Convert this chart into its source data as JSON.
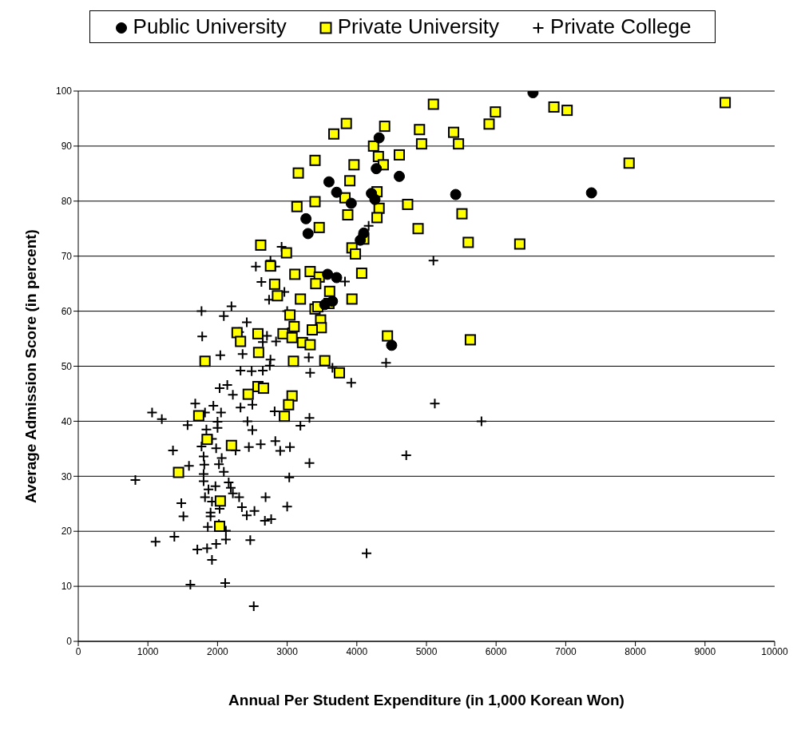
{
  "chart_data": {
    "type": "scatter",
    "xlabel": "Annual Per Student Expenditure (in 1,000 Korean Won)",
    "ylabel": "Average Admission Score (in percent)",
    "xlim": [
      0,
      10000
    ],
    "xticks": [
      0,
      1000,
      2000,
      3000,
      4000,
      5000,
      6000,
      7000,
      8000,
      9000,
      10000
    ],
    "ylim": [
      0,
      100
    ],
    "yticks": [
      0,
      10,
      20,
      30,
      40,
      50,
      60,
      70,
      80,
      90,
      100
    ],
    "grid": "y",
    "legend": "top",
    "series": [
      {
        "name": "Public University",
        "color": "#000000",
        "marker": "circle",
        "x": [
          6530,
          4320,
          4280,
          4610,
          3600,
          3710,
          3920,
          4210,
          4260,
          5420,
          7370,
          4100,
          4050,
          3580,
          3710,
          3650,
          3540,
          4500,
          3270,
          3300
        ],
        "values": [
          99.7,
          91.5,
          85.9,
          84.5,
          83.5,
          81.6,
          79.6,
          81.4,
          80.3,
          81.2,
          81.5,
          74.2,
          72.9,
          66.7,
          66.1,
          61.8,
          61.2,
          53.8,
          76.8,
          74.1
        ]
      },
      {
        "name": "Private University",
        "color": "#ffff00",
        "marker": "square",
        "x": [
          5100,
          3850,
          3670,
          4400,
          4900,
          5390,
          5990,
          5900,
          6830,
          7020,
          9290,
          4240,
          4930,
          5460,
          4310,
          4610,
          3960,
          4380,
          7910,
          3900,
          4290,
          3830,
          4320,
          3870,
          4290,
          4730,
          5510,
          4880,
          4100,
          3930,
          3980,
          5600,
          6340,
          4070,
          3610,
          3930,
          3600,
          4440,
          5630,
          3480,
          3490,
          3540,
          3750,
          3400,
          3160,
          3400,
          3140,
          3460,
          2620,
          2990,
          2760,
          3110,
          3330,
          3460,
          3410,
          2820,
          2860,
          3190,
          3400,
          3440,
          3040,
          3100,
          3360,
          2280,
          2580,
          2940,
          2330,
          3070,
          3220,
          3330,
          2590,
          1820,
          3090,
          2580,
          2660,
          2440,
          3070,
          3020,
          2960,
          1730,
          1850,
          2200,
          1440,
          2040,
          2030
        ],
        "values": [
          97.6,
          94.1,
          92.2,
          93.6,
          93.0,
          92.5,
          96.2,
          94.0,
          97.1,
          96.5,
          97.9,
          90.0,
          90.4,
          90.4,
          88.1,
          88.4,
          86.6,
          86.6,
          86.9,
          83.7,
          81.7,
          80.6,
          78.7,
          77.5,
          77.0,
          79.4,
          77.7,
          75.0,
          73.1,
          71.5,
          70.4,
          72.5,
          72.2,
          66.9,
          63.6,
          62.2,
          61.4,
          55.5,
          54.8,
          58.4,
          57.0,
          51.0,
          48.8,
          87.4,
          85.1,
          79.9,
          79.0,
          75.2,
          72.0,
          70.6,
          68.2,
          66.7,
          67.2,
          66.2,
          65.0,
          64.9,
          62.8,
          62.2,
          60.4,
          60.8,
          59.3,
          57.2,
          56.6,
          56.1,
          55.9,
          55.9,
          54.5,
          55.2,
          54.3,
          53.9,
          52.5,
          50.9,
          50.9,
          46.3,
          46.0,
          44.9,
          44.6,
          43.0,
          40.9,
          41.0,
          36.7,
          35.6,
          30.7,
          25.5,
          20.9
        ]
      },
      {
        "name": "Private College",
        "color": "#000000",
        "marker": "cross",
        "x": [
          2330,
          2490,
          2650,
          2750,
          3330,
          2030,
          2140,
          2220,
          1680,
          1940,
          2050,
          1820,
          2330,
          2500,
          2820,
          3320,
          1060,
          1200,
          1570,
          2000,
          2000,
          1840,
          2430,
          2500,
          3190,
          1920,
          1770,
          1980,
          2260,
          2450,
          2620,
          2830,
          2900,
          3040,
          1360,
          1800,
          2060,
          2020,
          1810,
          1590,
          3320,
          2090,
          1800,
          1800,
          3030,
          820,
          1970,
          1870,
          2160,
          2190,
          2220,
          2310,
          2690,
          1820,
          1920,
          2030,
          2350,
          1480,
          1510,
          1900,
          1900,
          2530,
          2420,
          3000,
          2680,
          2770,
          1860,
          2020,
          2120,
          1380,
          1110,
          2120,
          2470,
          1980,
          1710,
          1850,
          1920,
          1610,
          2110,
          2520,
          2920,
          2550,
          2760,
          2830,
          2630,
          2960,
          2740,
          2200,
          1770,
          2090,
          2420,
          3000,
          1780,
          2310,
          2710,
          2650,
          2840,
          3070,
          2040,
          2360,
          2760,
          3310,
          4170,
          3830,
          5100,
          4420,
          3650,
          3920,
          5120,
          5790,
          4710,
          4140
        ],
        "values": [
          49.2,
          49.1,
          49.2,
          50.1,
          48.8,
          46.0,
          46.6,
          44.8,
          43.2,
          42.8,
          41.6,
          41.6,
          42.5,
          43.0,
          41.8,
          40.6,
          41.6,
          40.4,
          39.3,
          39.9,
          38.8,
          38.5,
          40.0,
          38.4,
          39.2,
          36.8,
          35.4,
          35.1,
          34.7,
          35.3,
          35.8,
          36.4,
          34.6,
          35.3,
          34.7,
          33.6,
          33.3,
          32.2,
          32.1,
          31.9,
          32.4,
          30.8,
          30.4,
          29.1,
          29.8,
          29.3,
          28.2,
          27.6,
          28.9,
          27.9,
          26.9,
          26.2,
          26.2,
          26.2,
          25.4,
          24.1,
          24.4,
          25.1,
          22.7,
          23.4,
          22.7,
          23.7,
          22.9,
          24.5,
          21.9,
          22.2,
          20.8,
          21.3,
          20.1,
          19.0,
          18.1,
          18.5,
          18.4,
          17.7,
          16.7,
          16.9,
          14.8,
          10.3,
          10.6,
          6.4,
          71.7,
          68.1,
          69.2,
          68.1,
          65.3,
          63.5,
          62.1,
          60.9,
          60.0,
          59.1,
          58.0,
          60.0,
          55.4,
          56.2,
          55.5,
          54.4,
          54.5,
          56.9,
          52.0,
          52.2,
          51.2,
          51.6,
          75.5,
          65.4,
          69.2,
          50.6,
          49.7,
          47.0,
          43.2,
          40.0,
          33.8,
          16.0
        ]
      }
    ]
  }
}
